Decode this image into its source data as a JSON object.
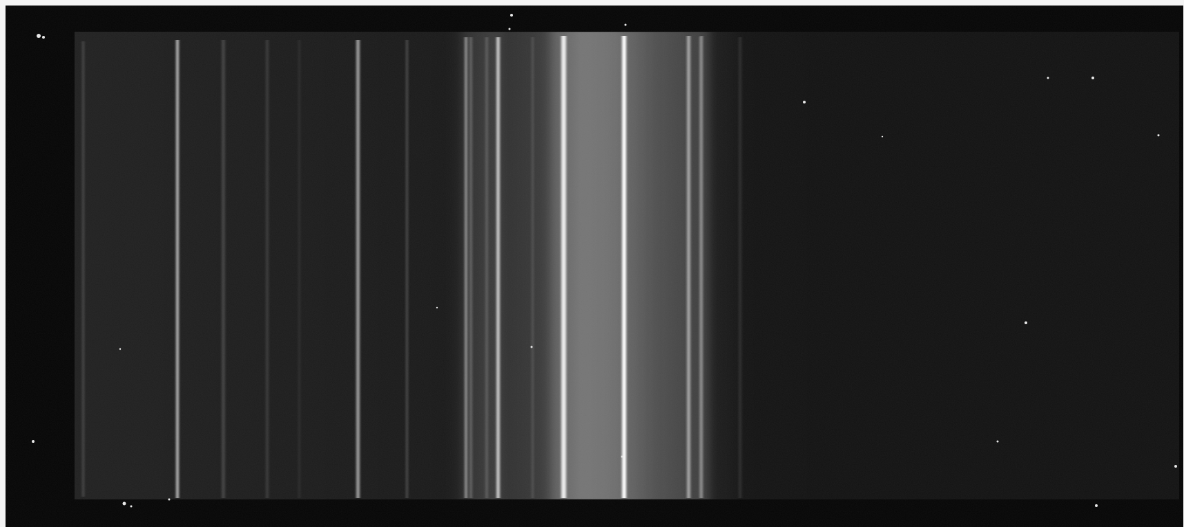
{
  "image": {
    "subject": "emission-spectrum-photograph",
    "background_color": "#060606",
    "band_color": "#141414",
    "line_color": "#d8d8d8"
  }
}
